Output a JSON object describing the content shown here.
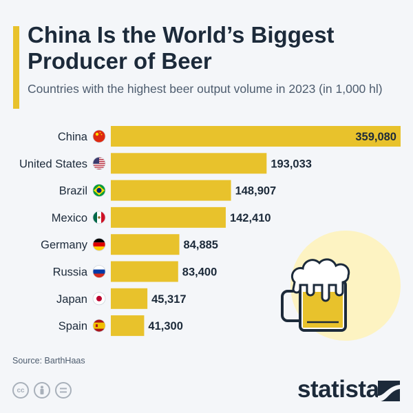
{
  "title": "China Is the World’s Biggest Producer of Beer",
  "subtitle": "Countries with the highest beer output volume in 2023 (in 1,000 hl)",
  "source": "Source: BarthHaas",
  "brand": "statista",
  "license_icons": [
    "cc-icon",
    "attribution-icon",
    "no-derivatives-icon"
  ],
  "colors": {
    "bar": "#e8c22c",
    "accent": "#e8c22c",
    "text": "#1c2a3a",
    "background": "#f4f6f9"
  },
  "chart_data": {
    "type": "bar",
    "orientation": "horizontal",
    "categories": [
      "China",
      "United States",
      "Brazil",
      "Mexico",
      "Germany",
      "Russia",
      "Japan",
      "Spain"
    ],
    "values": [
      359080,
      193033,
      148907,
      142410,
      84885,
      83400,
      45317,
      41300
    ],
    "value_labels": [
      "359,080",
      "193,033",
      "148,907",
      "142,410",
      "84,885",
      "83,400",
      "45,317",
      "41,300"
    ],
    "flags": [
      "china-flag-icon",
      "united-states-flag-icon",
      "brazil-flag-icon",
      "mexico-flag-icon",
      "germany-flag-icon",
      "russia-flag-icon",
      "japan-flag-icon",
      "spain-flag-icon"
    ],
    "xlim": [
      0,
      359080
    ],
    "grid": false,
    "legend": "none"
  }
}
